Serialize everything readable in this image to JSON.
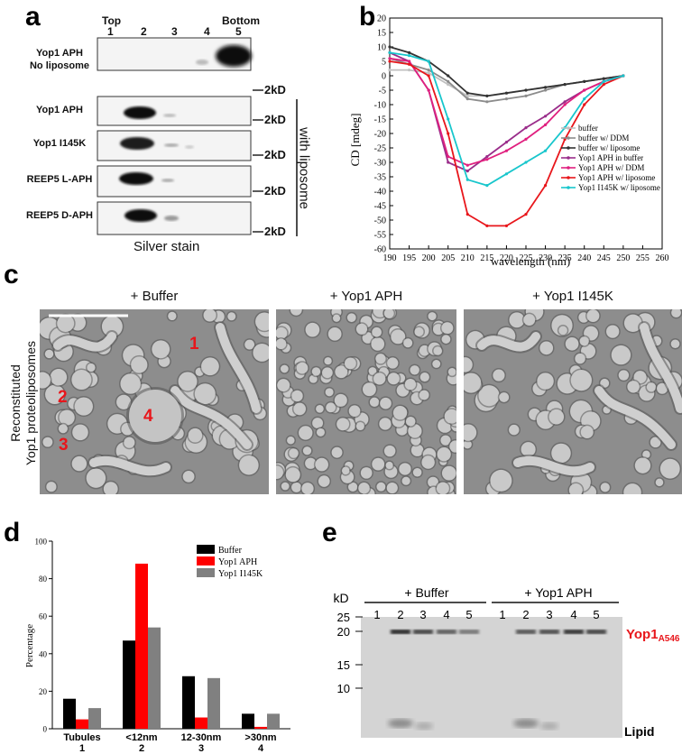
{
  "panels": {
    "a": "a",
    "b": "b",
    "c": "c",
    "d": "d",
    "e": "e"
  },
  "panel_a": {
    "fractions_label_top": "Top",
    "fractions_label_bottom": "Bottom",
    "fractions": [
      "1",
      "2",
      "3",
      "4",
      "5"
    ],
    "rows": [
      {
        "label_line1": "Yop1 APH",
        "label_line2": "No liposome",
        "marker": "2kD"
      },
      {
        "label_line1": "Yop1 APH",
        "label_line2": "",
        "marker": "2kD"
      },
      {
        "label_line1": "Yop1 I145K",
        "label_line2": "",
        "marker": "2kD"
      },
      {
        "label_line1": "REEP5 L-APH",
        "label_line2": "",
        "marker": "2kD"
      },
      {
        "label_line1": "REEP5 D-APH",
        "label_line2": "",
        "marker": "2kD"
      }
    ],
    "side_label": "with liposome",
    "caption": "Silver stain"
  },
  "panel_b": {
    "ylabel": "CD [mdeg]",
    "xlabel": "wavelength (nm)",
    "x_ticks": [
      "190",
      "195",
      "200",
      "205",
      "210",
      "215",
      "220",
      "225",
      "230",
      "235",
      "240",
      "245",
      "250",
      "255",
      "260"
    ],
    "y_ticks": [
      "20",
      "15",
      "10",
      "5",
      "0",
      "-5",
      "-10",
      "-15",
      "-20",
      "-25",
      "-30",
      "-35",
      "-40",
      "-45",
      "-50",
      "-55",
      "-60"
    ],
    "colors": {
      "buffer": "#c0c0c0",
      "ddm": "#8c8c8c",
      "lipo": "#333333",
      "aph_buf": "#9a2d8a",
      "aph_ddm": "#e0207f",
      "aph_lipo": "#e8161b",
      "i145k": "#18c6cc"
    }
  },
  "chart_data": [
    {
      "type": "line",
      "xlabel": "wavelength (nm)",
      "ylabel": "CD [mdeg]",
      "xlim": [
        190,
        260
      ],
      "ylim": [
        -60,
        20
      ],
      "legend_position": "right",
      "x": [
        190,
        195,
        200,
        205,
        210,
        215,
        220,
        225,
        230,
        235,
        240,
        245,
        250
      ],
      "series": [
        {
          "name": "buffer",
          "values": [
            2,
            2,
            1,
            -3,
            -7,
            -7,
            -6,
            -5,
            -4,
            -3,
            -2,
            -1,
            0
          ]
        },
        {
          "name": "buffer w/ DDM",
          "values": [
            6,
            4,
            2,
            -2,
            -8,
            -9,
            -8,
            -7,
            -5,
            -3,
            -2,
            -1,
            0
          ]
        },
        {
          "name": "buffer w/ liposome",
          "values": [
            10,
            8,
            5,
            0,
            -6,
            -7,
            -6,
            -5,
            -4,
            -3,
            -2,
            -1,
            0
          ]
        },
        {
          "name": "Yop1 APH in buffer",
          "values": [
            8,
            5,
            -5,
            -30,
            -33,
            -28,
            -23,
            -18,
            -14,
            -9,
            -5,
            -2,
            0
          ]
        },
        {
          "name": "Yop1 APH w/ DDM",
          "values": [
            6,
            5,
            -5,
            -28,
            -31,
            -29,
            -26,
            -22,
            -17,
            -10,
            -5,
            -2,
            0
          ]
        },
        {
          "name": "Yop1 APH w/ liposome",
          "values": [
            5,
            4,
            0,
            -20,
            -48,
            -52,
            -52,
            -48,
            -38,
            -22,
            -10,
            -3,
            0
          ]
        },
        {
          "name": "Yop1 I145K w/ liposome",
          "values": [
            8,
            7,
            5,
            -15,
            -36,
            -38,
            -34,
            -30,
            -26,
            -18,
            -8,
            -2,
            0
          ]
        }
      ]
    },
    {
      "type": "bar",
      "ylabel": "Percentage",
      "ylim": [
        0,
        100
      ],
      "legend_position": "top-right",
      "categories": [
        "Tubules",
        "<12nm",
        "12-30nm",
        ">30nm"
      ],
      "category_numbers": [
        "1",
        "2",
        "3",
        "4"
      ],
      "y_ticks": [
        "0",
        "20",
        "40",
        "60",
        "80",
        "100"
      ],
      "series": [
        {
          "name": "Buffer",
          "color": "#000000",
          "values": [
            16,
            47,
            28,
            8
          ]
        },
        {
          "name": "Yop1 APH",
          "color": "#ff0000",
          "values": [
            5,
            88,
            6,
            1
          ]
        },
        {
          "name": "Yop1 I145K",
          "color": "#808080",
          "values": [
            11,
            54,
            27,
            8
          ]
        }
      ]
    }
  ],
  "panel_c": {
    "titles": [
      "+ Buffer",
      "+ Yop1 APH",
      "+ Yop1 I145K"
    ],
    "ylabel_line1": "Reconstituted",
    "ylabel_line2": "Yop1 proteoliposomes",
    "annotations": [
      "1",
      "2",
      "3",
      "4"
    ]
  },
  "panel_e": {
    "group_buffer": "+ Buffer",
    "group_aph": "+ Yop1 APH",
    "lanes": [
      "1",
      "2",
      "3",
      "4",
      "5",
      "1",
      "2",
      "3",
      "4",
      "5"
    ],
    "kd": "kD",
    "markers": [
      "25",
      "20",
      "15",
      "10"
    ],
    "band_label": "Yop1",
    "band_label_sub": "A546",
    "lipid_label": "Lipid"
  }
}
